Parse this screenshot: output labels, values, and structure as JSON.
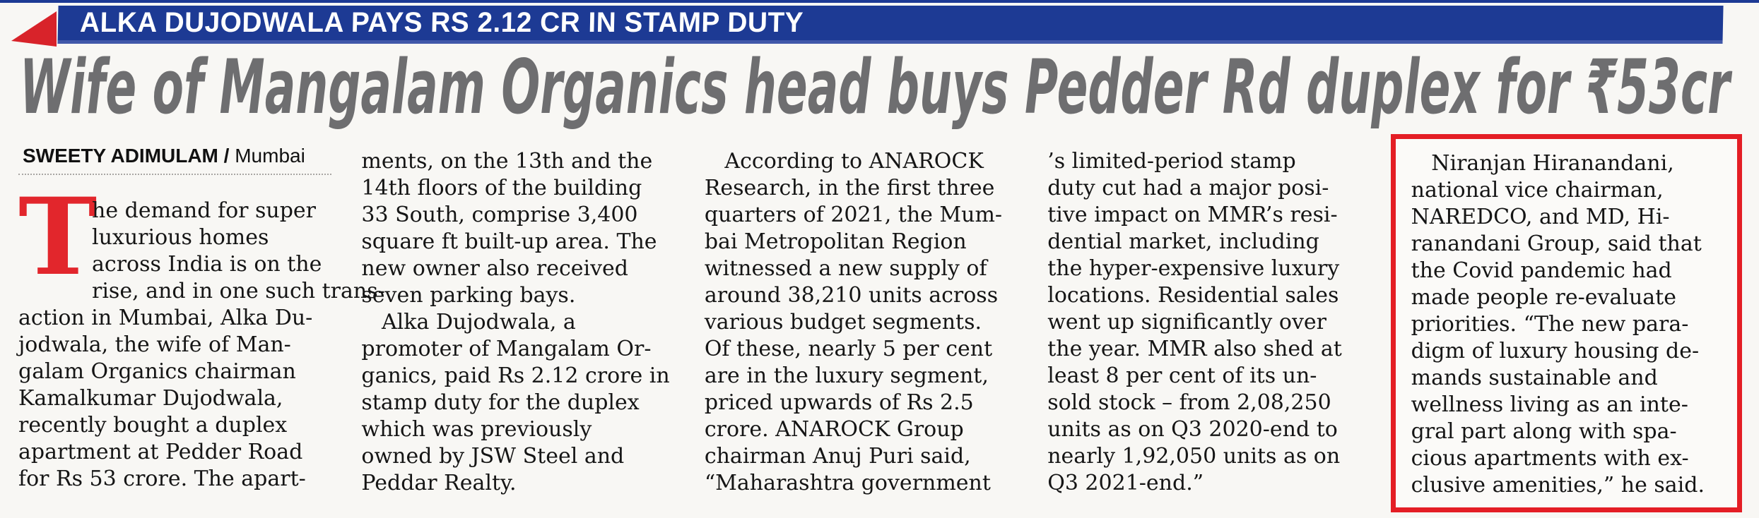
{
  "banner": {
    "kicker": "ALKA DUJODWALA PAYS RS 2.12 CR IN STAMP DUTY"
  },
  "headline": "Wife of Mangalam Organics head buys Pedder Rd duplex for ₹53cr",
  "byline": {
    "author": "SWEETY ADIMULAM",
    "separator": " / ",
    "location": "Mumbai"
  },
  "article": {
    "drop_cap": "T",
    "columns": [
      {
        "lines": [
          "he demand for super",
          "luxurious homes",
          "across India is on the",
          "rise, and in one such trans-",
          "action in Mumbai, Alka Du-",
          "jodwala, the wife of Man-",
          "galam Organics chairman",
          "Kamalkumar Dujodwala,",
          "recently bought a duplex",
          "apartment at Pedder Road",
          "for Rs 53 crore. The apart-"
        ]
      },
      {
        "lines": [
          "ments, on the 13th and the",
          "14th floors of the building",
          "33 South, comprise 3,400",
          "square ft built-up area. The",
          "new owner also received",
          "seven parking bays.",
          "   Alka Dujodwala, a",
          "promoter of Mangalam Or-",
          "ganics, paid Rs 2.12 crore in",
          "stamp duty for the duplex",
          "which was previously",
          "owned by JSW Steel and",
          "Peddar Realty."
        ]
      },
      {
        "lines": [
          "   According to ANAROCK",
          "Research, in the first three",
          "quarters of 2021, the Mum-",
          "bai Metropolitan Region",
          "witnessed a new supply of",
          "around 38,210 units across",
          "various budget segments.",
          "Of these, nearly 5 per cent",
          "are in the luxury segment,",
          "priced upwards of Rs 2.5",
          "crore. ANAROCK Group",
          "chairman Anuj Puri said,",
          "“Maharashtra government"
        ]
      },
      {
        "lines": [
          "’s limited-period stamp",
          "duty cut had a major posi-",
          "tive impact on MMR’s resi-",
          "dential market, including",
          "the hyper-expensive luxury",
          "locations. Residential sales",
          "went up significantly over",
          "the year. MMR also shed at",
          "least 8 per cent of its un-",
          "sold stock – from 2,08,250",
          "units as on Q3 2020-end to",
          "nearly 1,92,050 units as on",
          "Q3 2021-end.”"
        ]
      },
      {
        "lines": [
          "   Niranjan Hiranandani,",
          "national vice chairman,",
          "NAREDCO, and MD, Hi-",
          "ranandani Group, said that",
          "the Covid pandemic had",
          "made people re-evaluate",
          "priorities. “The new para-",
          "digm of luxury housing de-",
          "mands sustainable and",
          "wellness living as an inte-",
          "gral part along with spa-",
          "cious apartments with ex-",
          "clusive amenities,” he said."
        ]
      }
    ]
  },
  "colors": {
    "banner_blue": "#1d3a94",
    "flag_red": "#d8232a",
    "headline_gray": "#6e6e70",
    "dropcap_red": "#e2262c",
    "highlight_box_red": "#e41e25"
  }
}
